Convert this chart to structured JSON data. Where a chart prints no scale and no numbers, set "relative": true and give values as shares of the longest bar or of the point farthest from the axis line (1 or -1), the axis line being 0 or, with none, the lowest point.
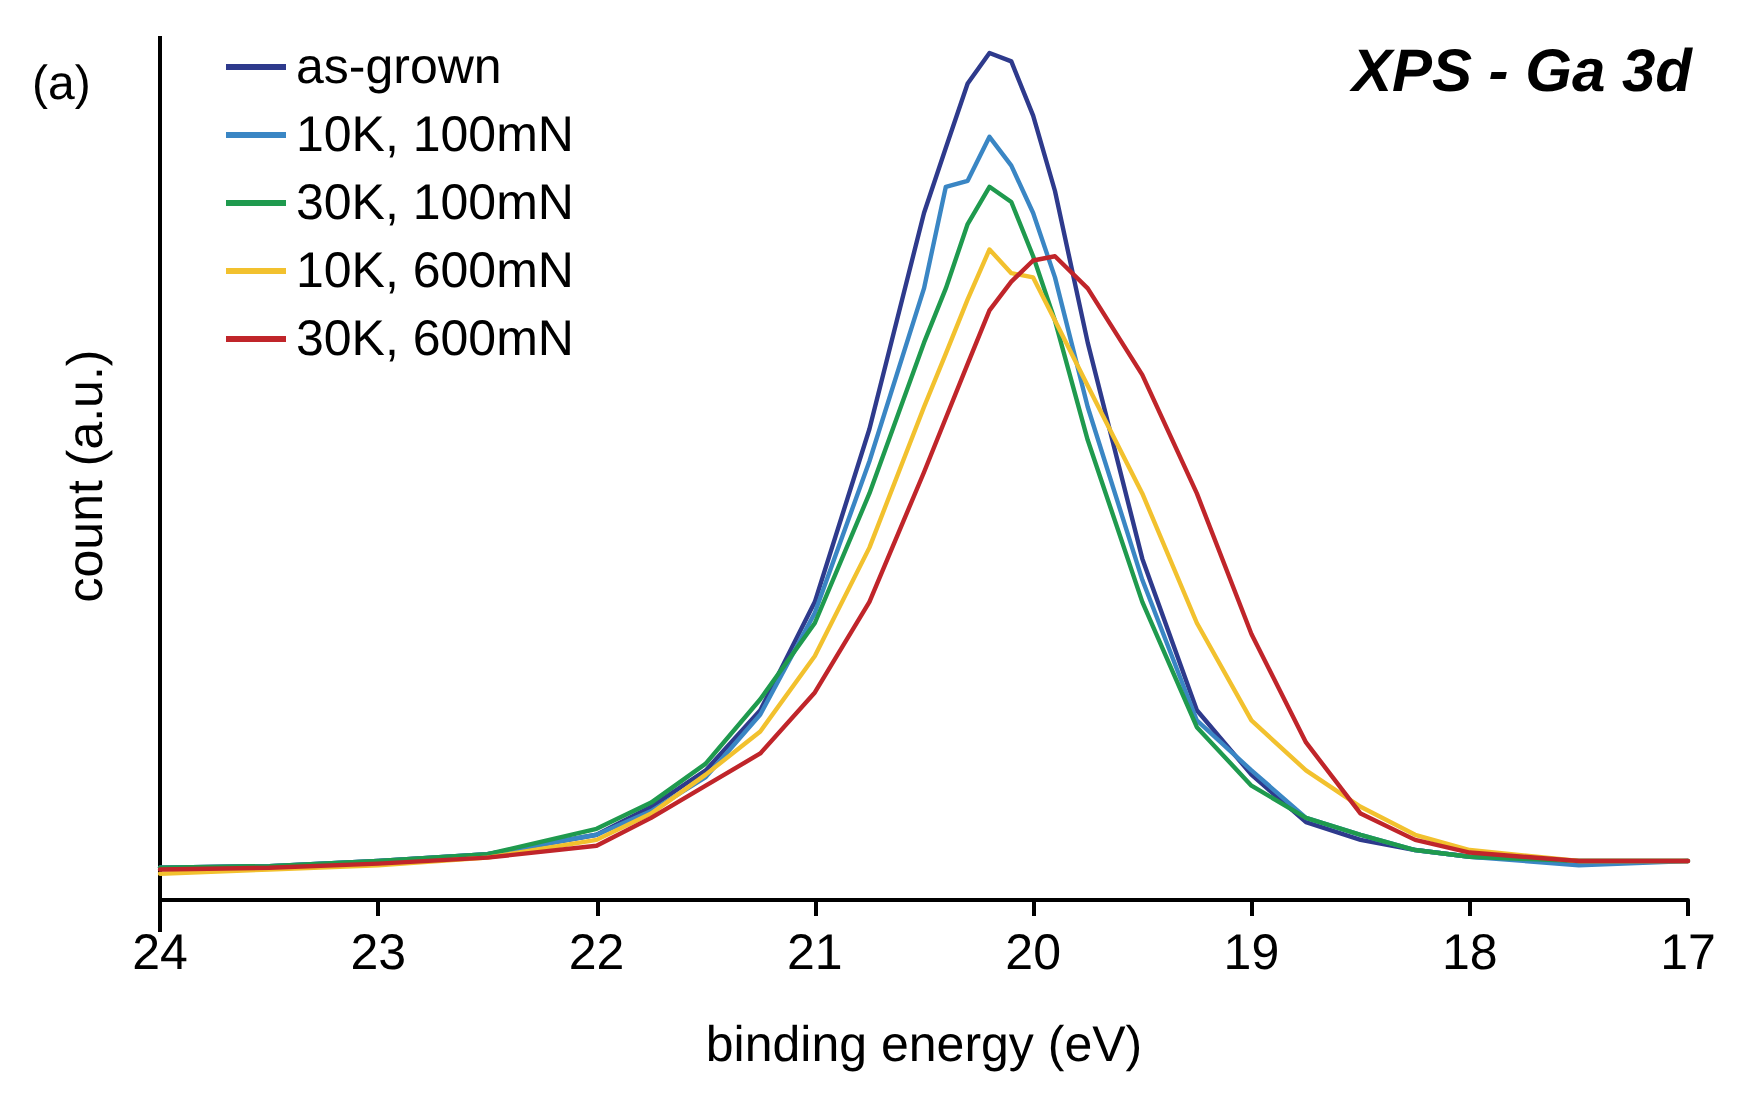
{
  "chart_data": {
    "type": "line",
    "title": "XPS - Ga 3d",
    "annotations": [
      "(a)"
    ],
    "xlabel": "binding energy (eV)",
    "ylabel": "count (a.u.)",
    "relative": true,
    "xlim": [
      24,
      17
    ],
    "xticks": [
      24,
      23,
      22,
      21,
      20,
      19,
      18,
      17
    ],
    "grid": false,
    "legend": "top left",
    "marker": "none",
    "line_style": "solid",
    "x": [
      24,
      23.5,
      23,
      22.5,
      22,
      21.75,
      21.5,
      21.25,
      21,
      20.75,
      20.5,
      20.4,
      20.3,
      20.2,
      20.1,
      20,
      19.9,
      19.75,
      19.5,
      19.25,
      19,
      18.75,
      18.5,
      18.25,
      18,
      17.5,
      17
    ],
    "series": [
      {
        "name": "as-grown",
        "color": "#2e3a8c",
        "values": [
          0.038,
          0.04,
          0.046,
          0.054,
          0.077,
          0.11,
          0.153,
          0.224,
          0.352,
          0.556,
          0.811,
          0.888,
          0.964,
          1.0,
          0.99,
          0.926,
          0.837,
          0.658,
          0.403,
          0.224,
          0.148,
          0.092,
          0.071,
          0.059,
          0.051,
          0.046,
          0.046
        ]
      },
      {
        "name": "10K, 100mN",
        "color": "#3a86c4",
        "values": [
          0.038,
          0.04,
          0.046,
          0.054,
          0.077,
          0.105,
          0.145,
          0.219,
          0.339,
          0.518,
          0.722,
          0.842,
          0.849,
          0.901,
          0.867,
          0.811,
          0.735,
          0.582,
          0.378,
          0.212,
          0.153,
          0.097,
          0.077,
          0.059,
          0.051,
          0.041,
          0.046
        ]
      },
      {
        "name": "30K, 100mN",
        "color": "#1f9a4e",
        "values": [
          0.038,
          0.04,
          0.046,
          0.054,
          0.084,
          0.115,
          0.161,
          0.237,
          0.327,
          0.48,
          0.658,
          0.722,
          0.798,
          0.842,
          0.824,
          0.76,
          0.684,
          0.543,
          0.352,
          0.204,
          0.135,
          0.097,
          0.077,
          0.059,
          0.051,
          0.046,
          0.046
        ]
      },
      {
        "name": "10K, 600mN",
        "color": "#f2c12e",
        "values": [
          0.031,
          0.036,
          0.041,
          0.05,
          0.071,
          0.102,
          0.148,
          0.199,
          0.288,
          0.416,
          0.582,
          0.645,
          0.709,
          0.768,
          0.74,
          0.735,
          0.684,
          0.607,
          0.48,
          0.327,
          0.212,
          0.153,
          0.11,
          0.077,
          0.059,
          0.046,
          0.046
        ]
      },
      {
        "name": "30K, 600mN",
        "color": "#c0252a",
        "values": [
          0.036,
          0.038,
          0.043,
          0.05,
          0.064,
          0.097,
          0.135,
          0.173,
          0.245,
          0.352,
          0.505,
          0.569,
          0.633,
          0.696,
          0.73,
          0.755,
          0.76,
          0.722,
          0.62,
          0.48,
          0.314,
          0.186,
          0.102,
          0.071,
          0.056,
          0.046,
          0.046
        ]
      }
    ]
  }
}
